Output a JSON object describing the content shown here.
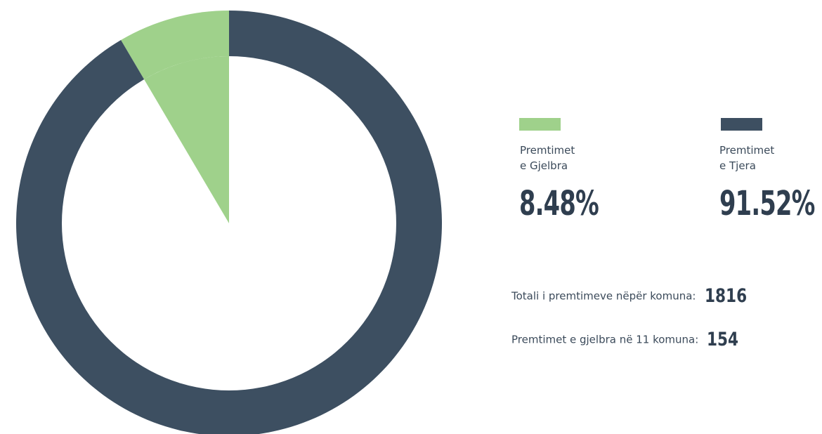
{
  "chart_data": {
    "type": "pie",
    "categories": [
      "Premtimet e Gjelbra",
      "Premtimet e Tjera"
    ],
    "values": [
      8.48,
      91.52
    ],
    "colors": [
      "#9fd18b",
      "#3d4f61"
    ],
    "legend": [
      {
        "line1": "Premtimet",
        "line2": "e Gjelbra",
        "value_label": "8.48%",
        "color": "#9fd18b"
      },
      {
        "line1": "Premtimet",
        "line2": "e Tjera",
        "value_label": "91.52%",
        "color": "#3d4f61"
      }
    ]
  },
  "stats": [
    {
      "label": "Totali i premtimeve nëpër komuna:",
      "value": "1816"
    },
    {
      "label": "Premtimet e gjelbra në 11 komuna:",
      "value": "154"
    }
  ]
}
